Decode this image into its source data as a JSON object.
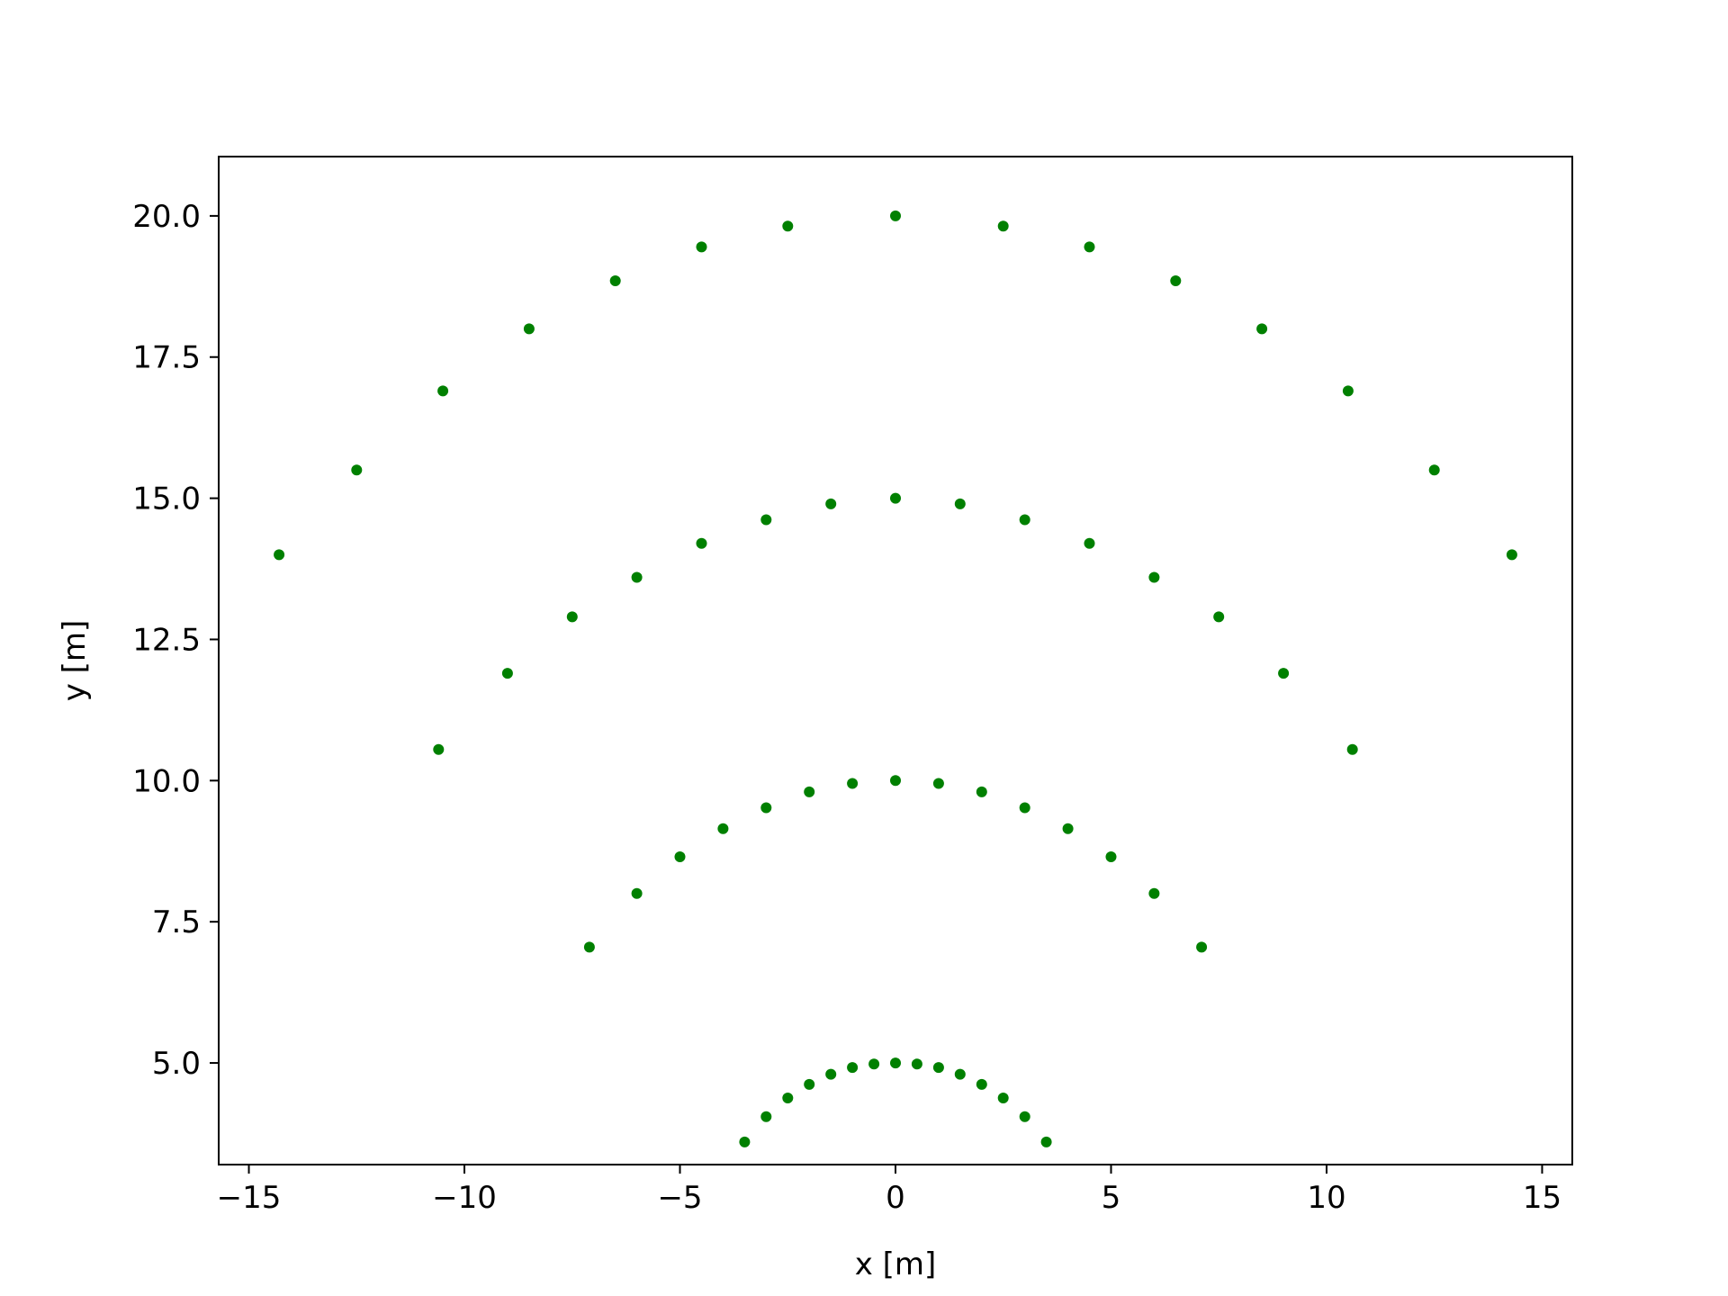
{
  "chart_data": {
    "type": "scatter",
    "title": "",
    "xlabel": "x [m]",
    "ylabel": "y [m]",
    "xlim": [
      -15.7,
      15.7
    ],
    "ylim": [
      3.2,
      21.05
    ],
    "xticks": [
      -15,
      -10,
      -5,
      0,
      5,
      10,
      15
    ],
    "xtick_labels": [
      "−15",
      "−10",
      "−5",
      "0",
      "5",
      "10",
      "15"
    ],
    "yticks": [
      5.0,
      7.5,
      10.0,
      12.5,
      15.0,
      17.5,
      20.0
    ],
    "ytick_labels": [
      "5.0",
      "7.5",
      "10.0",
      "12.5",
      "15.0",
      "17.5",
      "20.0"
    ],
    "grid": false,
    "marker_color": "#008000",
    "series": [
      {
        "points": [
          [
            -3.5,
            3.6
          ],
          [
            -3.0,
            4.05
          ],
          [
            -2.5,
            4.38
          ],
          [
            -2.0,
            4.62
          ],
          [
            -1.5,
            4.8
          ],
          [
            -1.0,
            4.92
          ],
          [
            -0.5,
            4.98
          ],
          [
            0.0,
            5.0
          ],
          [
            0.5,
            4.98
          ],
          [
            1.0,
            4.92
          ],
          [
            1.5,
            4.8
          ],
          [
            2.0,
            4.62
          ],
          [
            2.5,
            4.38
          ],
          [
            3.0,
            4.05
          ],
          [
            3.5,
            3.6
          ]
        ]
      },
      {
        "points": [
          [
            -7.1,
            7.05
          ],
          [
            -6.0,
            8.0
          ],
          [
            -5.0,
            8.65
          ],
          [
            -4.0,
            9.15
          ],
          [
            -3.0,
            9.52
          ],
          [
            -2.0,
            9.8
          ],
          [
            -1.0,
            9.95
          ],
          [
            0.0,
            10.0
          ],
          [
            1.0,
            9.95
          ],
          [
            2.0,
            9.8
          ],
          [
            3.0,
            9.52
          ],
          [
            4.0,
            9.15
          ],
          [
            5.0,
            8.65
          ],
          [
            6.0,
            8.0
          ],
          [
            7.1,
            7.05
          ]
        ]
      },
      {
        "points": [
          [
            -10.6,
            10.55
          ],
          [
            -9.0,
            11.9
          ],
          [
            -7.5,
            12.9
          ],
          [
            -6.0,
            13.6
          ],
          [
            -4.5,
            14.2
          ],
          [
            -3.0,
            14.62
          ],
          [
            -1.5,
            14.9
          ],
          [
            0.0,
            15.0
          ],
          [
            1.5,
            14.9
          ],
          [
            3.0,
            14.62
          ],
          [
            4.5,
            14.2
          ],
          [
            6.0,
            13.6
          ],
          [
            7.5,
            12.9
          ],
          [
            9.0,
            11.9
          ],
          [
            10.6,
            10.55
          ]
        ]
      },
      {
        "points": [
          [
            -14.3,
            14.0
          ],
          [
            -12.5,
            15.5
          ],
          [
            -10.5,
            16.9
          ],
          [
            -8.5,
            18.0
          ],
          [
            -6.5,
            18.85
          ],
          [
            -4.5,
            19.45
          ],
          [
            -2.5,
            19.82
          ],
          [
            0.0,
            20.0
          ],
          [
            2.5,
            19.82
          ],
          [
            4.5,
            19.45
          ],
          [
            6.5,
            18.85
          ],
          [
            8.5,
            18.0
          ],
          [
            10.5,
            16.9
          ],
          [
            12.5,
            15.5
          ],
          [
            14.3,
            14.0
          ]
        ]
      }
    ]
  }
}
